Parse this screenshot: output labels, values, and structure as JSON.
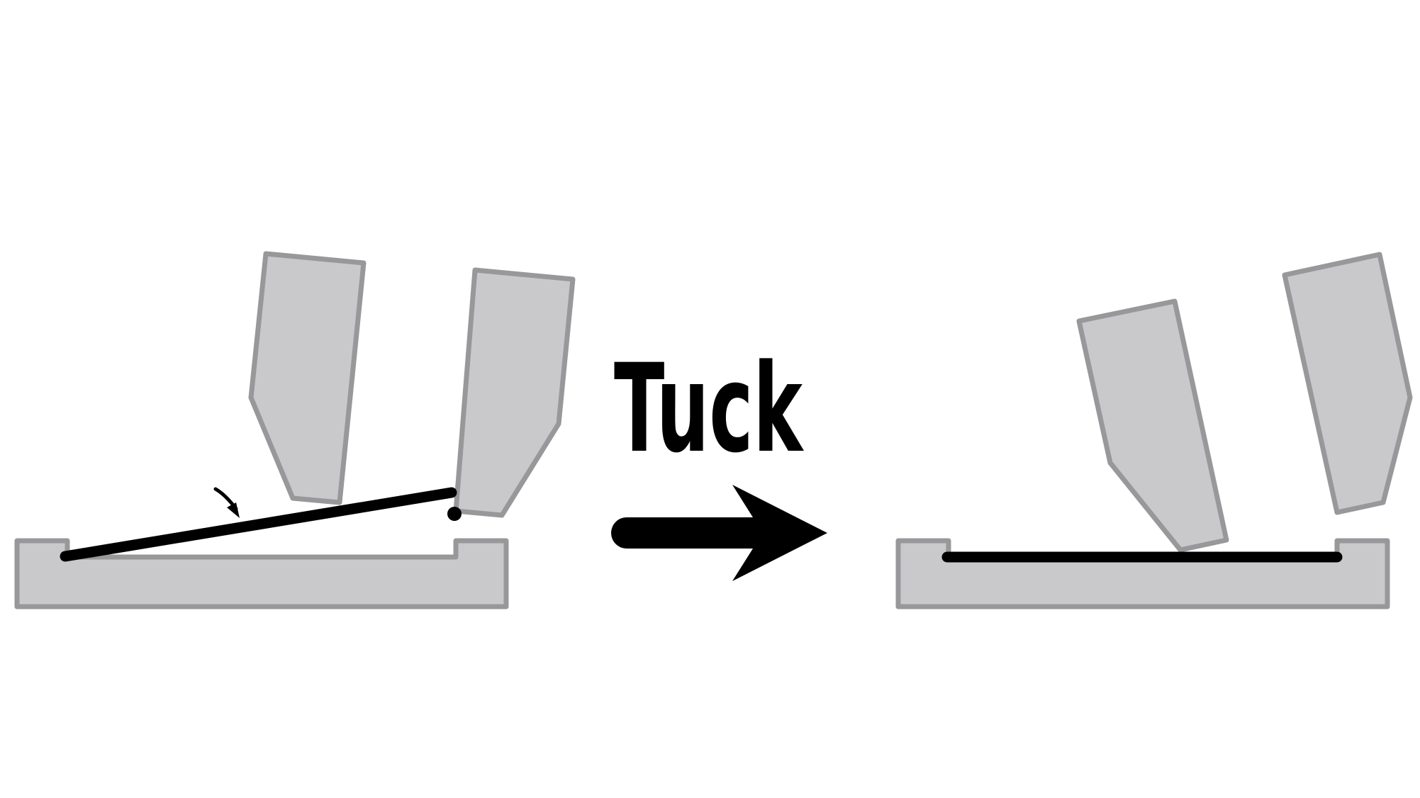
{
  "diagram": {
    "label": "Tuck",
    "colors": {
      "part_fill": "#c9c9cc",
      "part_stroke": "#98989b",
      "cable": "#000000",
      "arrow": "#000000",
      "background": "#ffffff"
    }
  }
}
